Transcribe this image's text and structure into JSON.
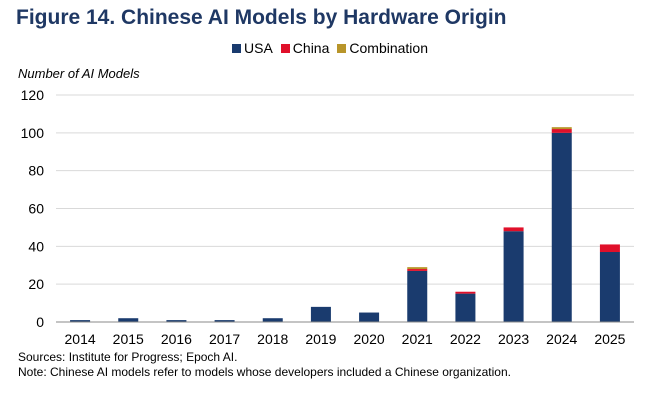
{
  "title": "Figure 14. Chinese AI Models by Hardware Origin",
  "sources": "Sources: Institute for Progress; Epoch AI.",
  "note": "Note: Chinese AI models refer to models whose developers included a Chinese organization.",
  "chart_data": {
    "type": "bar",
    "stacked": true,
    "title": "Figure 14. Chinese AI Models by Hardware Origin",
    "ylabel": "Number of AI Models",
    "xlabel": "",
    "ylim": [
      0,
      120
    ],
    "yticks": [
      0,
      20,
      40,
      60,
      80,
      100,
      120
    ],
    "grid": true,
    "legend": "top",
    "categories": [
      "2014",
      "2015",
      "2016",
      "2017",
      "2018",
      "2019",
      "2020",
      "2021",
      "2022",
      "2023",
      "2024",
      "2025"
    ],
    "series": [
      {
        "name": "USA",
        "color": "#1a3b6e",
        "values": [
          1,
          2,
          1,
          1,
          2,
          8,
          5,
          27,
          15,
          48,
          100,
          37
        ]
      },
      {
        "name": "China",
        "color": "#e0102a",
        "values": [
          0,
          0,
          0,
          0,
          0,
          0,
          0,
          1,
          1,
          2,
          2,
          4
        ]
      },
      {
        "name": "Combination",
        "color": "#b8952a",
        "values": [
          0,
          0,
          0,
          0,
          0,
          0,
          0,
          1,
          0,
          0,
          1,
          0
        ]
      }
    ]
  }
}
